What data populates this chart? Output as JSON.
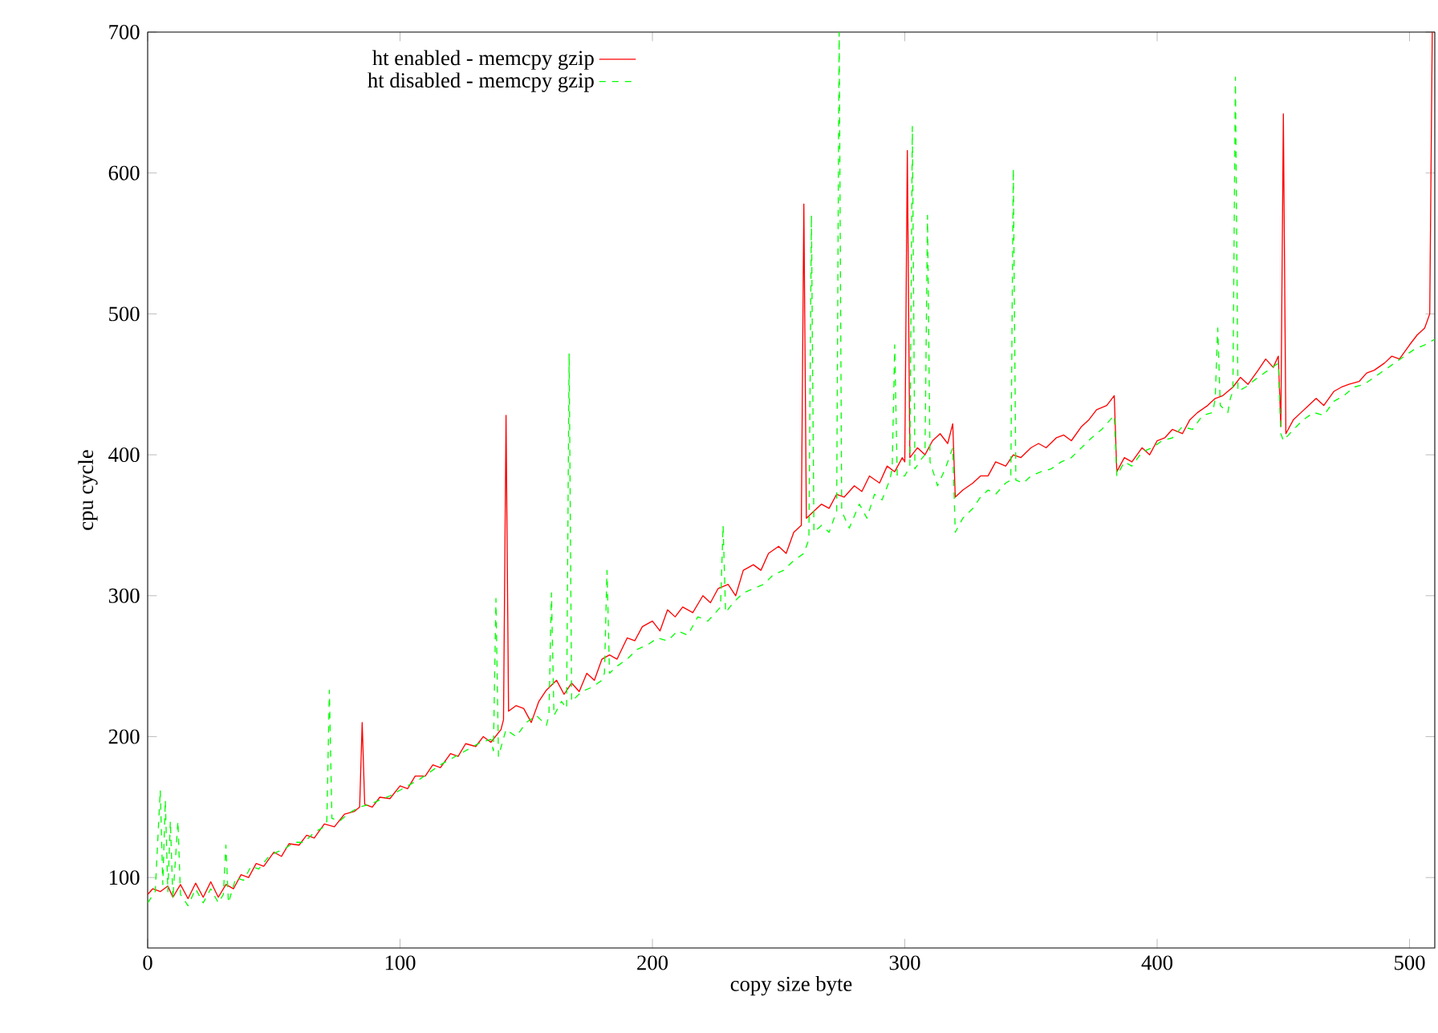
{
  "chart_data": {
    "type": "line",
    "xlabel": "copy size byte",
    "ylabel": "cpu cycle",
    "xlim": [
      0,
      510
    ],
    "ylim": [
      50,
      700
    ],
    "xticks": [
      0,
      100,
      200,
      300,
      400,
      500
    ],
    "yticks": [
      100,
      200,
      300,
      400,
      500,
      600,
      700
    ],
    "legend": "top left",
    "series": [
      {
        "name": "ht enabled - memcpy gzip",
        "color": "#ff0000",
        "line_style": "solid",
        "x": [
          0,
          2,
          5,
          8,
          10,
          13,
          16,
          19,
          22,
          25,
          28,
          31,
          34,
          37,
          40,
          43,
          46,
          50,
          53,
          56,
          60,
          63,
          66,
          70,
          74,
          78,
          82,
          84,
          85,
          86,
          89,
          92,
          96,
          100,
          103,
          106,
          110,
          113,
          116,
          120,
          123,
          126,
          130,
          133,
          136,
          140,
          141,
          142,
          143,
          146,
          149,
          152,
          155,
          158,
          162,
          165,
          168,
          171,
          174,
          177,
          180,
          183,
          186,
          190,
          193,
          196,
          200,
          203,
          206,
          209,
          212,
          216,
          220,
          223,
          226,
          230,
          233,
          236,
          240,
          243,
          246,
          250,
          253,
          256,
          259,
          260,
          261,
          264,
          267,
          270,
          273,
          276,
          280,
          283,
          286,
          290,
          293,
          296,
          299,
          300,
          301,
          302,
          305,
          308,
          311,
          314,
          317,
          319,
          320,
          323,
          327,
          330,
          333,
          336,
          340,
          343,
          346,
          350,
          353,
          356,
          360,
          363,
          366,
          370,
          373,
          376,
          380,
          383,
          384,
          387,
          390,
          394,
          397,
          400,
          403,
          406,
          410,
          413,
          416,
          420,
          423,
          426,
          430,
          433,
          436,
          440,
          443,
          446,
          448,
          449,
          450,
          451,
          454,
          457,
          460,
          463,
          466,
          470,
          473,
          476,
          480,
          483,
          486,
          490,
          493,
          496,
          500,
          503,
          506,
          508,
          509
        ],
        "values": [
          88,
          92,
          90,
          94,
          86,
          95,
          85,
          96,
          86,
          97,
          86,
          95,
          92,
          102,
          100,
          110,
          108,
          118,
          115,
          124,
          123,
          130,
          128,
          138,
          136,
          145,
          147,
          150,
          210,
          152,
          150,
          157,
          156,
          165,
          163,
          172,
          172,
          180,
          178,
          188,
          186,
          195,
          193,
          200,
          196,
          205,
          212,
          428,
          218,
          222,
          220,
          210,
          225,
          233,
          240,
          230,
          238,
          232,
          245,
          240,
          255,
          258,
          255,
          270,
          268,
          278,
          282,
          275,
          290,
          285,
          292,
          288,
          300,
          295,
          305,
          308,
          300,
          318,
          322,
          318,
          330,
          335,
          330,
          345,
          350,
          578,
          355,
          360,
          365,
          362,
          372,
          370,
          378,
          374,
          385,
          380,
          392,
          388,
          398,
          395,
          616,
          398,
          405,
          400,
          410,
          415,
          408,
          422,
          370,
          375,
          380,
          385,
          385,
          395,
          392,
          400,
          398,
          405,
          408,
          405,
          412,
          414,
          410,
          420,
          425,
          432,
          435,
          442,
          388,
          398,
          395,
          405,
          400,
          410,
          412,
          418,
          415,
          425,
          430,
          435,
          440,
          442,
          448,
          455,
          450,
          460,
          468,
          462,
          470,
          420,
          642,
          415,
          425,
          430,
          435,
          440,
          435,
          445,
          448,
          450,
          452,
          458,
          460,
          465,
          470,
          468,
          478,
          485,
          490,
          500,
          700
        ]
      },
      {
        "name": "ht disabled - memcpy gzip",
        "color": "#00ff00",
        "line_style": "dashed",
        "x": [
          0,
          3,
          5,
          6,
          7,
          8,
          9,
          10,
          12,
          13,
          16,
          19,
          22,
          25,
          28,
          30,
          31,
          32,
          35,
          38,
          41,
          44,
          48,
          51,
          54,
          58,
          62,
          66,
          70,
          71,
          72,
          73,
          76,
          80,
          84,
          88,
          92,
          96,
          100,
          104,
          108,
          112,
          116,
          120,
          124,
          128,
          132,
          136,
          137,
          138,
          139,
          142,
          146,
          150,
          154,
          158,
          159,
          160,
          161,
          164,
          166,
          167,
          168,
          172,
          176,
          180,
          181,
          182,
          183,
          186,
          190,
          194,
          198,
          202,
          206,
          210,
          214,
          218,
          222,
          226,
          227,
          228,
          229,
          232,
          236,
          240,
          244,
          248,
          252,
          256,
          260,
          261,
          262,
          263,
          264,
          267,
          270,
          273,
          274,
          275,
          278,
          282,
          285,
          288,
          291,
          294,
          295,
          296,
          297,
          300,
          302,
          303,
          304,
          307,
          308,
          309,
          310,
          313,
          316,
          319,
          320,
          323,
          327,
          330,
          333,
          336,
          340,
          342,
          343,
          344,
          347,
          350,
          354,
          358,
          362,
          366,
          370,
          374,
          378,
          383,
          384,
          387,
          390,
          394,
          398,
          402,
          406,
          410,
          414,
          418,
          422,
          423,
          424,
          425,
          428,
          429,
          430,
          431,
          432,
          435,
          440,
          444,
          448,
          449,
          450,
          454,
          458,
          462,
          466,
          470,
          474,
          478,
          482,
          486,
          490,
          494,
          498,
          502,
          506,
          510
        ],
        "values": [
          82,
          90,
          162,
          95,
          155,
          90,
          140,
          85,
          140,
          88,
          80,
          92,
          82,
          92,
          82,
          88,
          123,
          82,
          100,
          98,
          108,
          106,
          115,
          118,
          120,
          125,
          125,
          132,
          136,
          140,
          233,
          142,
          140,
          146,
          150,
          152,
          155,
          158,
          162,
          166,
          170,
          175,
          180,
          184,
          188,
          192,
          196,
          198,
          190,
          298,
          186,
          205,
          200,
          210,
          215,
          208,
          215,
          302,
          215,
          225,
          220,
          472,
          225,
          232,
          235,
          240,
          245,
          318,
          245,
          250,
          255,
          262,
          265,
          270,
          268,
          275,
          272,
          285,
          282,
          290,
          292,
          350,
          288,
          295,
          302,
          305,
          308,
          315,
          318,
          325,
          330,
          335,
          340,
          570,
          345,
          350,
          345,
          360,
          700,
          360,
          348,
          365,
          355,
          372,
          368,
          382,
          390,
          478,
          385,
          385,
          392,
          633,
          390,
          398,
          400,
          570,
          395,
          378,
          390,
          405,
          345,
          355,
          362,
          370,
          375,
          372,
          380,
          382,
          603,
          382,
          380,
          385,
          388,
          390,
          395,
          398,
          405,
          412,
          418,
          428,
          385,
          395,
          392,
          402,
          405,
          410,
          412,
          420,
          418,
          428,
          430,
          440,
          490,
          435,
          430,
          440,
          445,
          668,
          445,
          448,
          455,
          460,
          465,
          415,
          410,
          418,
          425,
          430,
          428,
          438,
          442,
          448,
          450,
          455,
          460,
          465,
          470,
          475,
          478,
          482
        ]
      }
    ]
  }
}
